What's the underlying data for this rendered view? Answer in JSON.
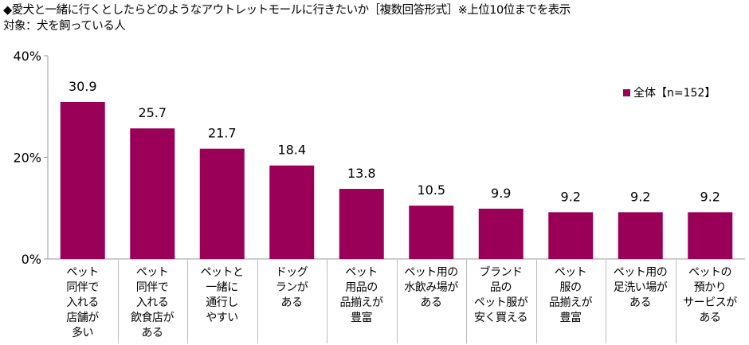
{
  "title": "◆愛犬と一緒に行くとしたらどのようなアウトレットモールに行きたいか［複数回答形式］※上位10位までを表示",
  "subtitle": "対象：犬を飼っている人",
  "chart_data": {
    "type": "bar",
    "title": "愛犬と一緒に行くとしたらどのようなアウトレットモールに行きたいか",
    "categories": [
      "ペット\n同伴で\n入れる\n店舗が\n多い",
      "ペット\n同伴で\n入れる\n飲食店が\nある",
      "ペットと\n一緒に\n通行し\nやすい",
      "ドッグ\nランが\nある",
      "ペット\n用品の\n品揃えが\n豊富",
      "ペット用の\n水飲み場が\nある",
      "ブランド\n品の\nペット服が\n安く買える",
      "ペット\n服の\n品揃えが\n豊富",
      "ペット用の\n足洗い場が\nある",
      "ペットの\n預かり\nサービスが\nある"
    ],
    "series": [
      {
        "name": "全体【n=152】",
        "values": [
          30.9,
          25.7,
          21.7,
          18.4,
          13.8,
          10.5,
          9.9,
          9.2,
          9.2,
          9.2
        ]
      }
    ],
    "value_labels": [
      "30.9",
      "25.7",
      "21.7",
      "18.4",
      "13.8",
      "10.5",
      "9.9",
      "9.2",
      "9.2",
      "9.2"
    ],
    "yticks": [
      "0%",
      "20%",
      "40%"
    ],
    "ylim": [
      0,
      40
    ],
    "legend": "top-right",
    "color": "#9b0058"
  }
}
